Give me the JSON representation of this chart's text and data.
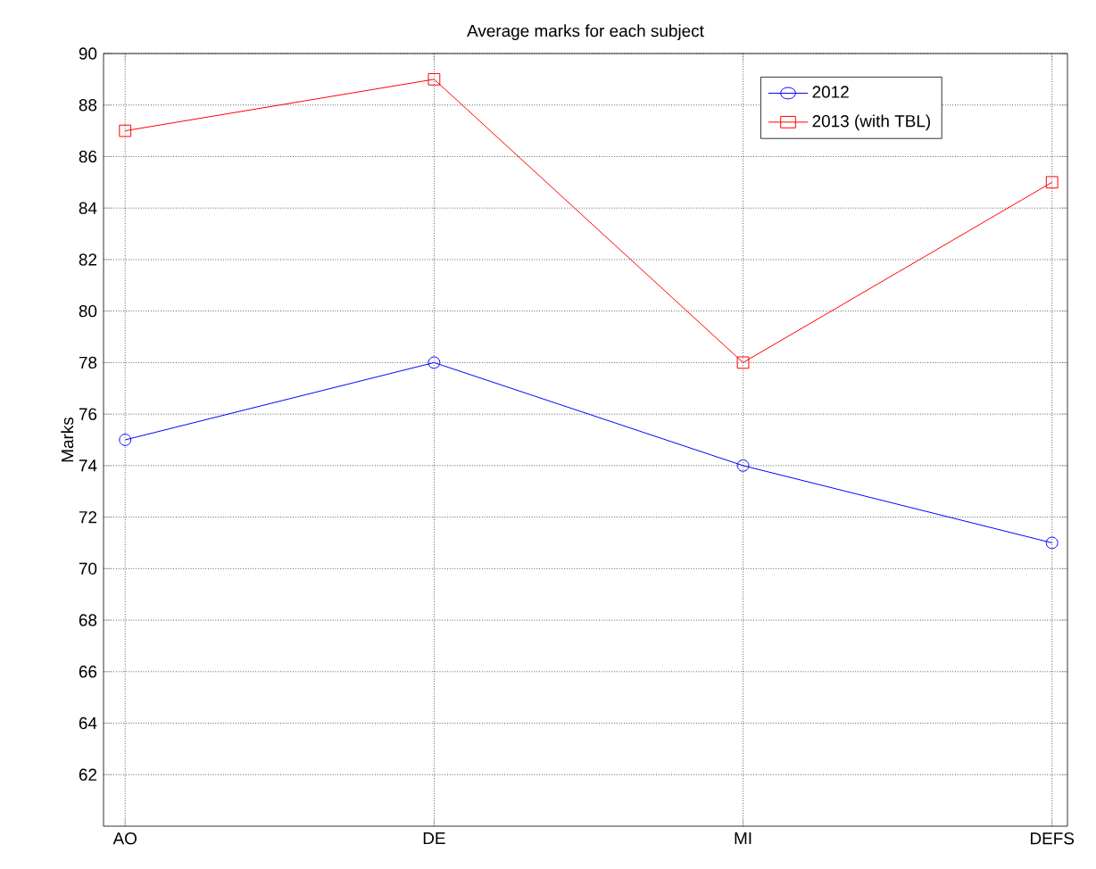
{
  "chart_data": {
    "type": "line",
    "title": "Average marks for each subject",
    "ylabel": "Marks",
    "categories": [
      "AO",
      "DE",
      "MI",
      "DEFS"
    ],
    "series": [
      {
        "name": "2012",
        "color": "#0000ff",
        "marker": "circle",
        "values": [
          75,
          78,
          74,
          71
        ]
      },
      {
        "name": "2013 (with TBL)",
        "color": "#ff0000",
        "marker": "square",
        "values": [
          87,
          89,
          78,
          85
        ]
      }
    ],
    "ylim": [
      60,
      90
    ],
    "yticks": [
      62,
      64,
      66,
      68,
      70,
      72,
      74,
      76,
      78,
      80,
      82,
      84,
      86,
      88,
      90
    ],
    "grid": true,
    "legend": "top right",
    "line_style": "solid"
  }
}
